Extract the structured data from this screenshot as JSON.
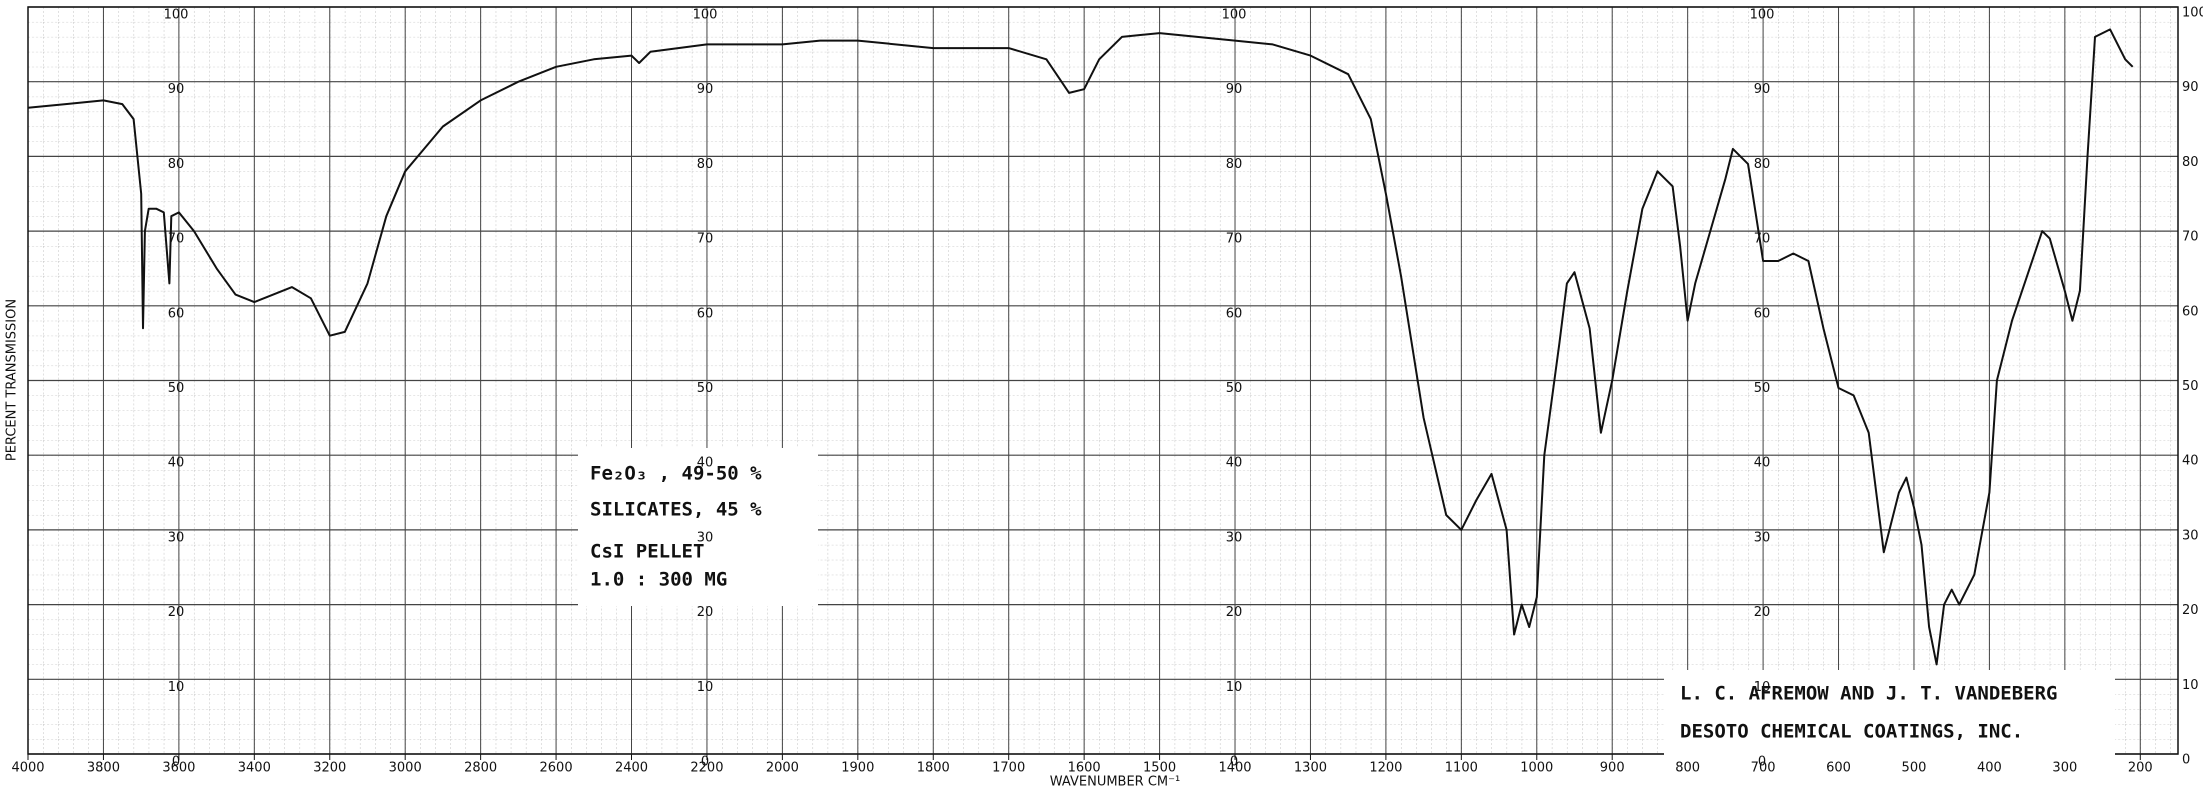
{
  "chart_data": {
    "type": "line",
    "y_label": "PERCENT TRANSMISSION",
    "x_label": "WAVENUMBER CM⁻¹",
    "annotations": [
      "Fe₂O₃ , 49-50 %",
      "SILICATES, 45 %",
      "CsI PELLET",
      "1.0 : 300 MG"
    ],
    "credit": [
      "L. C. AFREMOW AND J. T. VANDEBERG",
      "DESOTO CHEMICAL COATINGS, INC."
    ],
    "color": "#111111",
    "grid": true,
    "xlim": [
      4000,
      150
    ],
    "ylim": [
      0,
      100
    ],
    "xticks": [
      4000,
      3800,
      3600,
      3400,
      3200,
      3000,
      2800,
      2600,
      2400,
      2200,
      2000,
      1900,
      1800,
      1700,
      1600,
      1500,
      1400,
      1300,
      1200,
      1100,
      1000,
      900,
      800,
      700,
      600,
      500,
      400,
      300,
      200
    ],
    "yticks": [
      0,
      10,
      20,
      30,
      40,
      50,
      60,
      70,
      80,
      90,
      100
    ],
    "x": [
      4000,
      3900,
      3800,
      3750,
      3720,
      3700,
      3695,
      3690,
      3680,
      3660,
      3640,
      3625,
      3620,
      3600,
      3560,
      3500,
      3450,
      3400,
      3350,
      3300,
      3250,
      3200,
      3160,
      3100,
      3050,
      3000,
      2950,
      2900,
      2800,
      2700,
      2600,
      2500,
      2400,
      2380,
      2350,
      2200,
      2000,
      1950,
      1900,
      1800,
      1700,
      1650,
      1620,
      1600,
      1580,
      1550,
      1500,
      1450,
      1400,
      1350,
      1300,
      1250,
      1220,
      1200,
      1180,
      1150,
      1120,
      1100,
      1080,
      1060,
      1040,
      1030,
      1020,
      1010,
      1000,
      990,
      970,
      960,
      950,
      930,
      915,
      900,
      880,
      860,
      840,
      820,
      810,
      800,
      790,
      770,
      750,
      740,
      720,
      700,
      680,
      660,
      640,
      620,
      600,
      580,
      560,
      540,
      520,
      510,
      500,
      490,
      480,
      470,
      460,
      450,
      440,
      420,
      400,
      390,
      370,
      350,
      330,
      320,
      300,
      290,
      280,
      270,
      260,
      240,
      220,
      210
    ],
    "values": [
      86.5,
      87,
      87.5,
      87,
      85,
      75,
      57,
      70,
      73,
      73,
      72.5,
      63,
      72,
      72.5,
      70,
      65,
      61.5,
      60.5,
      61.5,
      62.5,
      61,
      56,
      56.5,
      63,
      72,
      78,
      81,
      84,
      87.5,
      90,
      92,
      93,
      93.5,
      92.5,
      94,
      95,
      95,
      95.5,
      95.5,
      94.5,
      94.5,
      93,
      88.5,
      89,
      93,
      96,
      96.5,
      96,
      95.5,
      95,
      93.5,
      91,
      85,
      75,
      64,
      45,
      32,
      30,
      34,
      37.5,
      30,
      16,
      20,
      17,
      21,
      40,
      55,
      63,
      64.5,
      57,
      43,
      50,
      62,
      73,
      78,
      76,
      68,
      58,
      63,
      70,
      77,
      81,
      79,
      66,
      66,
      67,
      66,
      57,
      49,
      48,
      43,
      27,
      35,
      37,
      33,
      28,
      17,
      12,
      20,
      22,
      20,
      24,
      35,
      50,
      58,
      64,
      70,
      69,
      62,
      58,
      62,
      80,
      96,
      97,
      93,
      92
    ]
  }
}
